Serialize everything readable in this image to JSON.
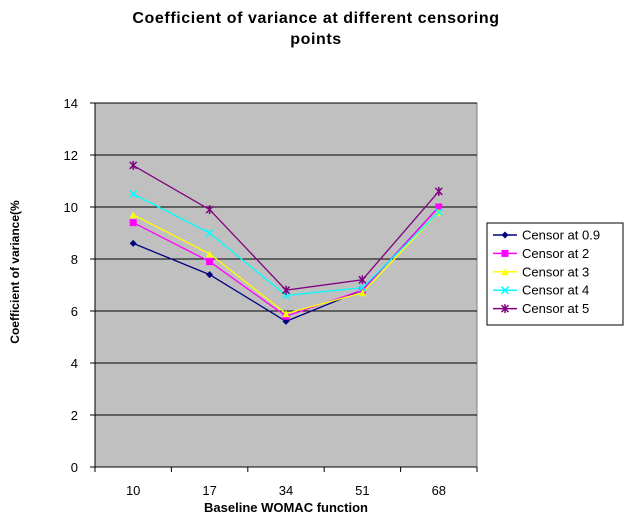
{
  "chart_data": {
    "type": "line",
    "title_lines": [
      "Coefficient of variance at different censoring",
      "points"
    ],
    "xlabel": "Baseline WOMAC function",
    "ylabel": "Coefficient of variance(%",
    "categories": [
      "10",
      "17",
      "34",
      "51",
      "68"
    ],
    "ylim": [
      0,
      14
    ],
    "yticks": [
      "0",
      "2",
      "4",
      "6",
      "8",
      "10",
      "12",
      "14"
    ],
    "grid": true,
    "legend_position": "right",
    "plot_background": "#c0c0c0",
    "series": [
      {
        "name": "Censor at 0.9",
        "color": "#000080",
        "marker": "diamond",
        "values": [
          8.6,
          7.4,
          5.6,
          6.8,
          10.0
        ]
      },
      {
        "name": "Censor at 2",
        "color": "#ff00ff",
        "marker": "square",
        "values": [
          9.4,
          7.9,
          5.8,
          6.8,
          10.0
        ]
      },
      {
        "name": "Censor at  3",
        "color": "#ffff00",
        "marker": "triangle",
        "values": [
          9.7,
          8.2,
          5.9,
          6.7,
          9.8
        ]
      },
      {
        "name": "Censor at  4",
        "color": "#00ffff",
        "marker": "x",
        "values": [
          10.5,
          9.0,
          6.6,
          6.9,
          9.8
        ]
      },
      {
        "name": "Censor at  5",
        "color": "#800080",
        "marker": "star",
        "values": [
          11.6,
          9.9,
          6.8,
          7.2,
          10.6
        ]
      }
    ]
  }
}
